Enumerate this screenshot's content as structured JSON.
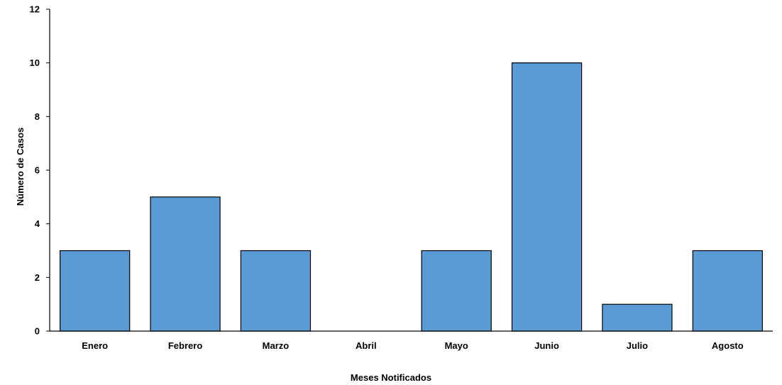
{
  "chart_data": {
    "type": "bar",
    "title": "",
    "xlabel": "Meses Notificados",
    "ylabel": "Número de Casos",
    "categories": [
      "Enero",
      "Febrero",
      "Marzo",
      "Abril",
      "Mayo",
      "Junio",
      "Julio",
      "Agosto"
    ],
    "values": [
      3,
      5,
      3,
      0,
      3,
      10,
      1,
      3
    ],
    "ylim": [
      0,
      12
    ],
    "yticks": [
      0,
      2,
      4,
      6,
      8,
      10,
      12
    ],
    "grid": false,
    "legend": "none",
    "bar_color": "#5b9bd5",
    "bar_edge_color": "#000000"
  }
}
